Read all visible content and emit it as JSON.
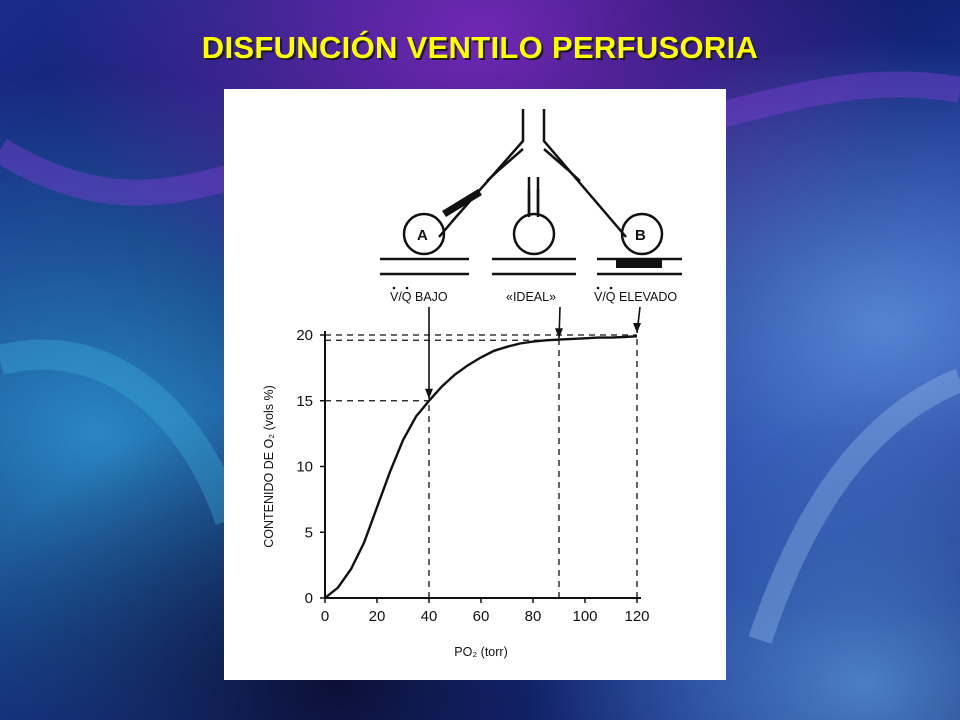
{
  "slide": {
    "title": "DISFUNCIÓN VENTILO PERFUSORIA",
    "title_color": "#ffff00"
  },
  "diagram": {
    "alveolus_a": "A",
    "alveolus_b": "B",
    "label_low": "V/Q BAJO",
    "label_ideal": "«IDEAL»",
    "label_high": "V/Q ELEVADO"
  },
  "chart_data": {
    "type": "line",
    "xlabel": "PO₂ (torr)",
    "ylabel": "CONTENIDO DE O₂ (vols %)",
    "xlim": [
      0,
      120
    ],
    "ylim": [
      0,
      20
    ],
    "x_ticks": [
      0,
      20,
      40,
      60,
      80,
      100,
      120
    ],
    "y_ticks": [
      0,
      5,
      10,
      15,
      20
    ],
    "series": [
      {
        "x": [
          0,
          5,
          10,
          15,
          20,
          25,
          30,
          35,
          40,
          45,
          50,
          55,
          60,
          65,
          70,
          75,
          80,
          85,
          90,
          95,
          100,
          105,
          110,
          115,
          120
        ],
        "y": [
          0,
          0.8,
          2.2,
          4.2,
          6.9,
          9.6,
          12.0,
          13.8,
          15.0,
          16.1,
          17.0,
          17.7,
          18.3,
          18.8,
          19.1,
          19.35,
          19.5,
          19.6,
          19.65,
          19.7,
          19.75,
          19.8,
          19.8,
          19.85,
          19.9
        ]
      }
    ],
    "reference_lines": [
      {
        "label": "V/Q BAJO",
        "x": 40,
        "y": 15
      },
      {
        "label": "«IDEAL»",
        "x": 90,
        "y": 19.6
      },
      {
        "label": "V/Q ELEVADO",
        "x": 120,
        "y": 20
      }
    ],
    "grid": false
  }
}
